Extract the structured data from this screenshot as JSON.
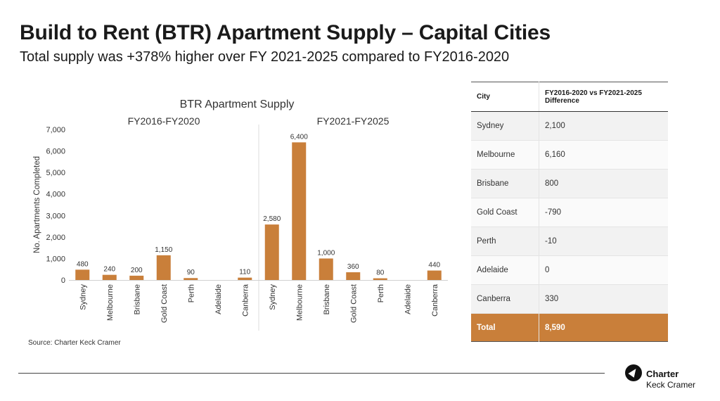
{
  "header": {
    "title": "Build to Rent (BTR) Apartment Supply – Capital Cities",
    "subtitle": "Total supply was +378% higher over FY 2021-2025 compared to FY2016-2020"
  },
  "chart_data": {
    "type": "bar",
    "title": "BTR Apartment Supply",
    "ylabel": "No. Apartments Completed",
    "ylim": [
      0,
      7000
    ],
    "yticks": [
      "0",
      "1,000",
      "2,000",
      "3,000",
      "4,000",
      "5,000",
      "6,000",
      "7,000"
    ],
    "bar_color": "#c97f3a",
    "groups": [
      {
        "name": "FY2016-FY2020",
        "categories": [
          "Sydney",
          "Melbourne",
          "Brisbane",
          "Gold Coast",
          "Perth",
          "Adelaide",
          "Canberra"
        ],
        "values": [
          480,
          240,
          200,
          1150,
          90,
          0,
          110
        ],
        "labels": [
          "480",
          "240",
          "200",
          "1,150",
          "90",
          "",
          "110"
        ]
      },
      {
        "name": "FY2021-FY2025",
        "categories": [
          "Sydney",
          "Melbourne",
          "Brisbane",
          "Gold Coast",
          "Perth",
          "Adelaide",
          "Canberra"
        ],
        "values": [
          2580,
          6400,
          1000,
          360,
          80,
          0,
          440
        ],
        "labels": [
          "2,580",
          "6,400",
          "1,000",
          "360",
          "80",
          "",
          "440"
        ]
      }
    ]
  },
  "source": "Source: Charter Keck Cramer",
  "table": {
    "headers": [
      "City",
      "FY2016-2020 vs FY2021-2025 Difference"
    ],
    "rows": [
      [
        "Sydney",
        "2,100"
      ],
      [
        "Melbourne",
        "6,160"
      ],
      [
        "Brisbane",
        "800"
      ],
      [
        "Gold Coast",
        "-790"
      ],
      [
        "Perth",
        "-10"
      ],
      [
        "Adelaide",
        "0"
      ],
      [
        "Canberra",
        "330"
      ]
    ],
    "total": [
      "Total",
      "8,590"
    ]
  },
  "logo": {
    "line1": "Charter",
    "line2": "Keck Cramer"
  }
}
